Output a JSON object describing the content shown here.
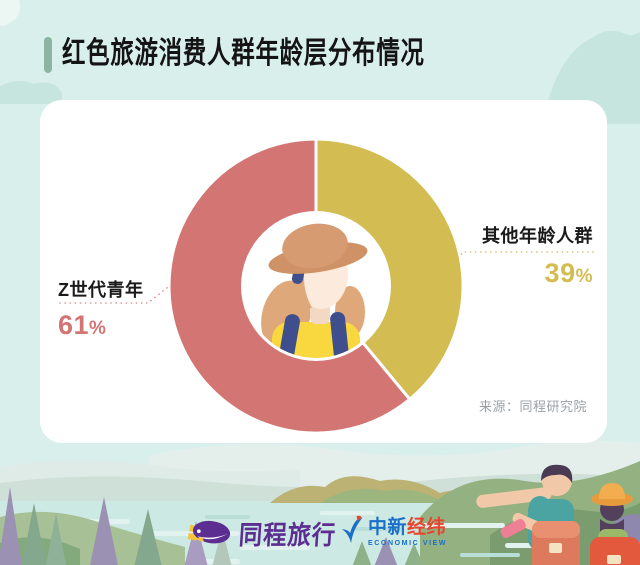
{
  "header": {
    "title": "红色旅游消费人群年龄层分布情况"
  },
  "chart_data": {
    "type": "pie",
    "donut": true,
    "title": "红色旅游消费人群年龄层分布情况",
    "layout": {
      "start_angle": "12-o'clock",
      "direction": "clockwise",
      "labels": "callouts with dotted leader lines",
      "center": "hiker avatar illustration"
    },
    "slices": [
      {
        "label": "其他年龄人群",
        "value": 39,
        "display": "39%",
        "color": "#d3bc52"
      },
      {
        "label": "Z世代青年",
        "value": 61,
        "display": "61%",
        "color": "#d37573"
      }
    ],
    "source": "来源：同程研究院"
  },
  "callouts": {
    "left": {
      "name": "Z世代青年",
      "pct_num": "61",
      "pct_sign": "%",
      "color": "#d37573"
    },
    "right": {
      "name": "其他年龄人群",
      "pct_num": "39",
      "pct_sign": "%",
      "color": "#d3bc52"
    }
  },
  "source_note": "来源：同程研究院",
  "footer": {
    "tongcheng_label": "同程旅行",
    "zhongxin_blue": "中新",
    "zhongxin_red": "经纬",
    "zhongxin_sub": "ECONOMIC VIEW"
  },
  "colors": {
    "background": "#d8efec",
    "cloud": "#c5e5de",
    "card": "#ffffff",
    "accent_bar": "#8cb5a1",
    "slice_pink": "#d37573",
    "slice_yellow": "#d3bc52",
    "tongcheng_purple": "#5c2e92",
    "zhongxin_blue": "#1a6fc9",
    "zhongxin_red": "#e8442e",
    "source_gray": "#9aa0a6"
  }
}
